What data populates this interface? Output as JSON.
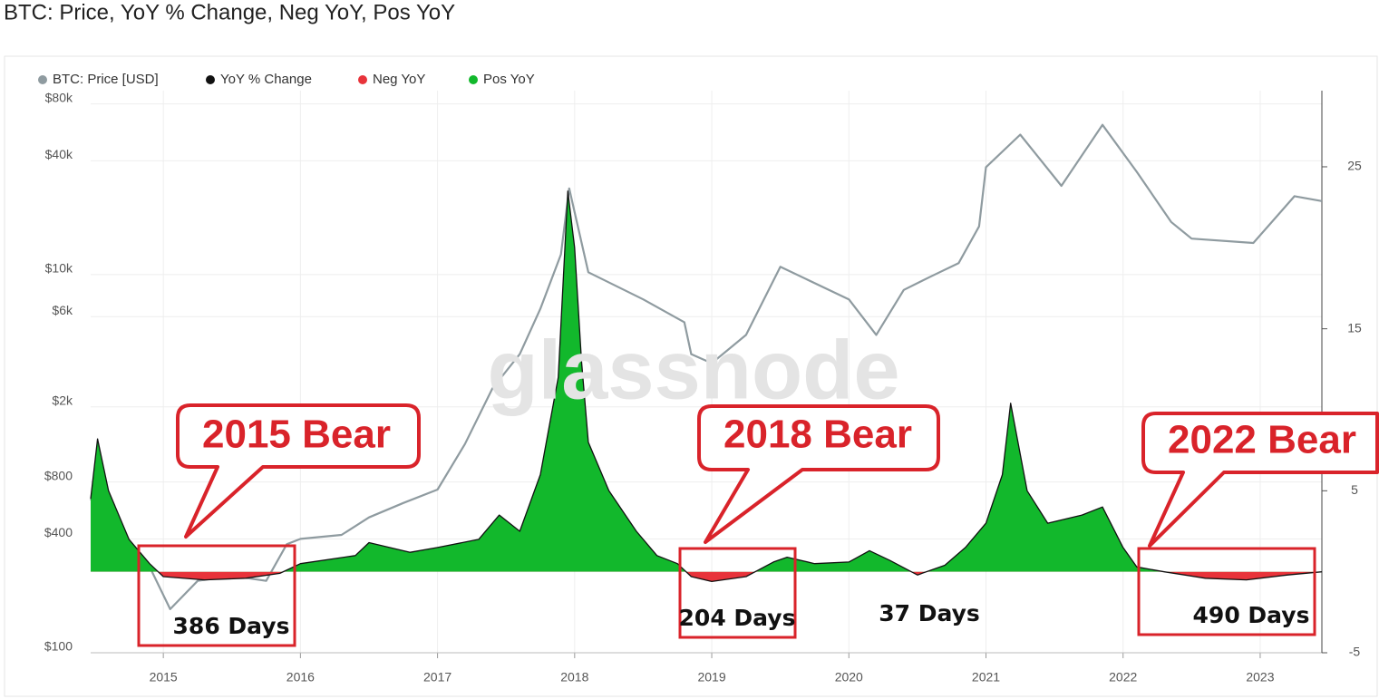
{
  "chart_data": {
    "type": "line",
    "title": "BTC: Price, YoY % Change, Neg YoY, Pos YoY",
    "watermark": "glassnode",
    "xlim": [
      2014.47,
      2023.45
    ],
    "xticks": [
      2015,
      2016,
      2017,
      2018,
      2019,
      2020,
      2021,
      2022,
      2023
    ],
    "ylim": [
      100,
      94000
    ],
    "yscale": "log",
    "yticks": [
      {
        "value": 100,
        "label": "$100"
      },
      {
        "value": 400,
        "label": "$400"
      },
      {
        "value": 800,
        "label": "$800"
      },
      {
        "value": 2000,
        "label": "$2k"
      },
      {
        "value": 6000,
        "label": "$6k"
      },
      {
        "value": 10000,
        "label": "$10k"
      },
      {
        "value": 40000,
        "label": "$40k"
      },
      {
        "value": 80000,
        "label": "$80k"
      }
    ],
    "y2lim": [
      -5,
      29.7
    ],
    "y2ticks": [
      -5,
      5,
      15,
      25
    ],
    "grid": true,
    "legend": "top-left",
    "series": [
      {
        "name": "BTC: Price [USD]",
        "color": "#8f9ba0",
        "x": [
          2014.47,
          2014.75,
          2014.9,
          2015.05,
          2015.25,
          2015.5,
          2015.75,
          2015.9,
          2016.0,
          2016.3,
          2016.5,
          2016.75,
          2017.0,
          2017.2,
          2017.4,
          2017.6,
          2017.75,
          2017.9,
          2017.96,
          2018.1,
          2018.5,
          2018.8,
          2018.85,
          2019.0,
          2019.25,
          2019.5,
          2020.0,
          2020.2,
          2020.4,
          2020.6,
          2020.8,
          2020.95,
          2021.0,
          2021.25,
          2021.55,
          2021.85,
          2022.1,
          2022.35,
          2022.5,
          2022.95,
          2023.25,
          2023.45
        ],
        "values": [
          650,
          375,
          285,
          170,
          240,
          255,
          240,
          375,
          400,
          420,
          520,
          620,
          730,
          1270,
          2500,
          3800,
          6600,
          12800,
          28600,
          10300,
          7400,
          5600,
          3800,
          3400,
          4800,
          11000,
          7400,
          4800,
          8300,
          9800,
          11500,
          18000,
          37000,
          55000,
          29500,
          62000,
          35000,
          19000,
          15500,
          14700,
          26000,
          24500
        ]
      },
      {
        "name": "YoY % Change",
        "color": "#111111",
        "axis": "y2",
        "x": [
          2014.47,
          2014.52,
          2014.6,
          2014.75,
          2014.9,
          2015.0,
          2015.3,
          2015.6,
          2015.85,
          2016.0,
          2016.4,
          2016.5,
          2016.8,
          2017.0,
          2017.3,
          2017.45,
          2017.6,
          2017.75,
          2017.88,
          2017.95,
          2018.0,
          2018.05,
          2018.1,
          2018.25,
          2018.45,
          2018.6,
          2018.75,
          2018.85,
          2019.0,
          2019.25,
          2019.45,
          2019.55,
          2019.75,
          2020.0,
          2020.15,
          2020.3,
          2020.5,
          2020.7,
          2020.85,
          2021.0,
          2021.12,
          2021.18,
          2021.3,
          2021.45,
          2021.7,
          2021.85,
          2022.0,
          2022.1,
          2022.3,
          2022.6,
          2022.9,
          2023.2,
          2023.45
        ],
        "values": [
          4.5,
          8.2,
          5,
          2,
          0.5,
          -0.3,
          -0.5,
          -0.4,
          -0.1,
          0.5,
          1.0,
          1.8,
          1.2,
          1.5,
          2.0,
          3.5,
          2.5,
          6,
          12,
          23.5,
          20,
          13,
          8,
          5,
          2.5,
          1,
          0.5,
          -0.3,
          -0.6,
          -0.3,
          0.6,
          0.9,
          0.5,
          0.6,
          1.3,
          0.7,
          -0.2,
          0.4,
          1.5,
          3.0,
          6,
          10.4,
          5,
          3,
          3.5,
          4.0,
          1.5,
          0.3,
          0,
          -0.4,
          -0.5,
          -0.2,
          0
        ]
      }
    ],
    "fills": [
      {
        "name": "Neg YoY",
        "color": "#e8333a",
        "sign": "negative"
      },
      {
        "name": "Pos YoY",
        "color": "#12b82c",
        "sign": "positive"
      }
    ],
    "annotations": {
      "callouts": [
        "2015 Bear",
        "2018 Bear",
        "2022 Bear"
      ],
      "durations": [
        "386 Days",
        "204 Days",
        "37 Days",
        "490 Days"
      ]
    }
  }
}
